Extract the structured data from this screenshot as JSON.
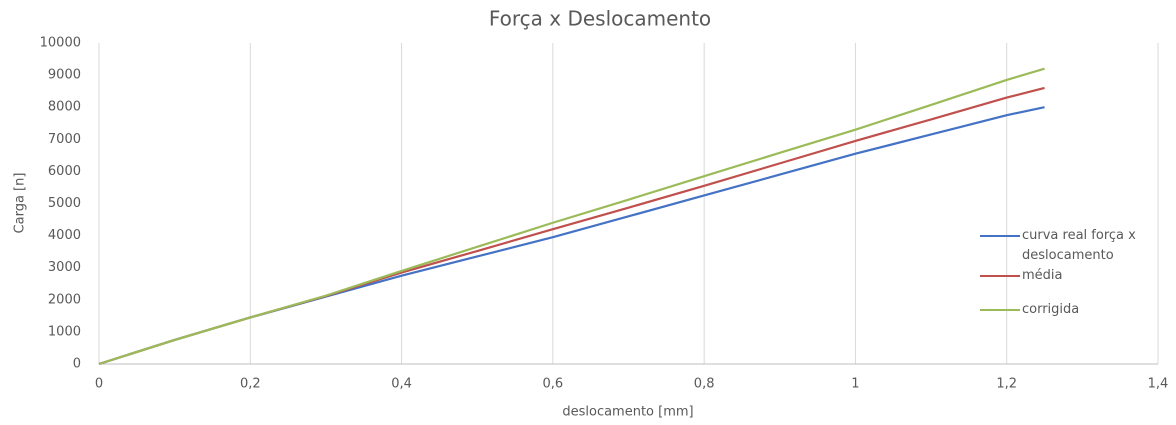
{
  "chart_data": {
    "type": "line",
    "title": "Força x Deslocamento",
    "x_label": "deslocamento [mm]",
    "y_label": "Carga [n]",
    "x": [
      0,
      0.1,
      0.2,
      0.3,
      0.4,
      0.5,
      0.6,
      0.7,
      0.8,
      0.9,
      1.0,
      1.1,
      1.2,
      1.25
    ],
    "series": [
      {
        "name": "curva real força x deslocamento",
        "color": "#4472c4",
        "values": [
          0,
          750,
          1450,
          2100,
          2750,
          3350,
          3950,
          4600,
          5250,
          5900,
          6550,
          7150,
          7750,
          8000
        ]
      },
      {
        "name": "média",
        "color": "#c0504d",
        "values": [
          0,
          750,
          1450,
          2120,
          2850,
          3520,
          4200,
          4870,
          5550,
          6250,
          6950,
          7620,
          8300,
          8600
        ]
      },
      {
        "name": "corrigida",
        "color": "#9bbb59",
        "values": [
          0,
          750,
          1450,
          2130,
          2900,
          3650,
          4400,
          5120,
          5850,
          6580,
          7300,
          8070,
          8850,
          9200
        ]
      }
    ],
    "xlim": [
      0,
      1.4
    ],
    "xticks": [
      0,
      {
        "value": 0.2,
        "label": "0,2"
      },
      {
        "value": 0.4,
        "label": "0,4"
      },
      {
        "value": 0.6,
        "label": "0,6"
      },
      {
        "value": 0.8,
        "label": "0,8"
      },
      1,
      {
        "value": 1.2,
        "label": "1,2"
      },
      {
        "value": 1.4,
        "label": "1,4"
      }
    ],
    "ylim": [
      0,
      10000
    ],
    "yticks": [
      0,
      1000,
      2000,
      3000,
      4000,
      5000,
      6000,
      7000,
      8000,
      9000,
      10000
    ],
    "grid": "x",
    "legend": "right"
  }
}
